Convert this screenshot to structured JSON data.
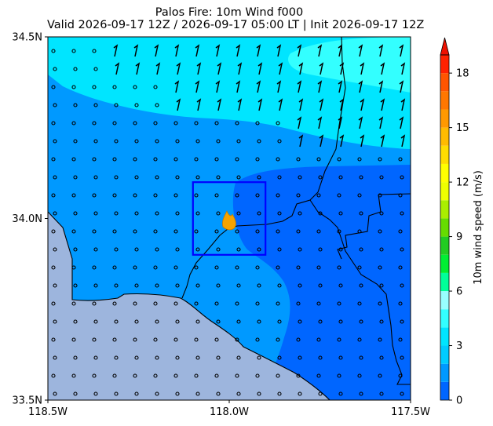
{
  "title": "Palos Fire: 10m Wind f000",
  "subtitle": "Valid 2026-09-17 12Z / 2026-09-17 05:00 LT | Init 2026-09-17 12Z",
  "chart_data": {
    "type": "heatmap",
    "title": "Palos Fire: 10m Wind f000",
    "subtitle": "Valid 2026-09-17 12Z / 2026-09-17 05:00 LT | Init 2026-09-17 12Z",
    "xlim": [
      -118.5,
      -117.5
    ],
    "ylim": [
      33.5,
      34.5
    ],
    "x_ticks": [
      -118.5,
      -118.0,
      -117.5
    ],
    "x_tick_labels": [
      "118.5W",
      "118.0W",
      "117.5W"
    ],
    "y_ticks": [
      33.5,
      34.0,
      34.5
    ],
    "y_tick_labels": [
      "33.5N",
      "34.0N",
      "34.5N"
    ],
    "grid": false,
    "colorbar": {
      "label": "10m wind speed (m/s)",
      "min": 0,
      "max": 19,
      "extend": "max",
      "ticks": [
        0,
        3,
        6,
        9,
        12,
        15,
        18
      ],
      "levels": [
        {
          "from": 0,
          "to": 1,
          "color": "#0066ff"
        },
        {
          "from": 1,
          "to": 2,
          "color": "#0099ff"
        },
        {
          "from": 2,
          "to": 3,
          "color": "#00ccff"
        },
        {
          "from": 3,
          "to": 4,
          "color": "#00e5ff"
        },
        {
          "from": 4,
          "to": 5,
          "color": "#33ffff"
        },
        {
          "from": 5,
          "to": 6,
          "color": "#99ffff"
        },
        {
          "from": 6,
          "to": 7,
          "color": "#00ff99"
        },
        {
          "from": 7,
          "to": 8,
          "color": "#00ee33"
        },
        {
          "from": 8,
          "to": 9,
          "color": "#22cc22"
        },
        {
          "from": 9,
          "to": 10,
          "color": "#66dd00"
        },
        {
          "from": 10,
          "to": 11,
          "color": "#aaee00"
        },
        {
          "from": 11,
          "to": 12,
          "color": "#eeff00"
        },
        {
          "from": 12,
          "to": 13,
          "color": "#ffff00"
        },
        {
          "from": 13,
          "to": 14,
          "color": "#ffdd00"
        },
        {
          "from": 14,
          "to": 15,
          "color": "#ffbb00"
        },
        {
          "from": 15,
          "to": 16,
          "color": "#ff9900"
        },
        {
          "from": 16,
          "to": 17,
          "color": "#ff7700"
        },
        {
          "from": 17,
          "to": 18,
          "color": "#ff5500"
        },
        {
          "from": 18,
          "to": 19,
          "color": "#ff2200"
        }
      ],
      "extend_color": "#ee1100"
    },
    "fill_colors": {
      "ocean": "#9db5dd",
      "speed_0_1": "#0066ff",
      "speed_1_2": "#0099ff",
      "speed_2_4": "#00e5ff"
    },
    "focus_box": {
      "lon": [
        -118.1,
        -117.9
      ],
      "lat": [
        33.9,
        34.1
      ],
      "color": "#0000ff"
    },
    "fire_location": {
      "lon": -118.0,
      "lat": 33.99,
      "color": "#f5a300"
    },
    "wind_barbs": "calm (circles) over most of domain; light barbs in north-east"
  }
}
